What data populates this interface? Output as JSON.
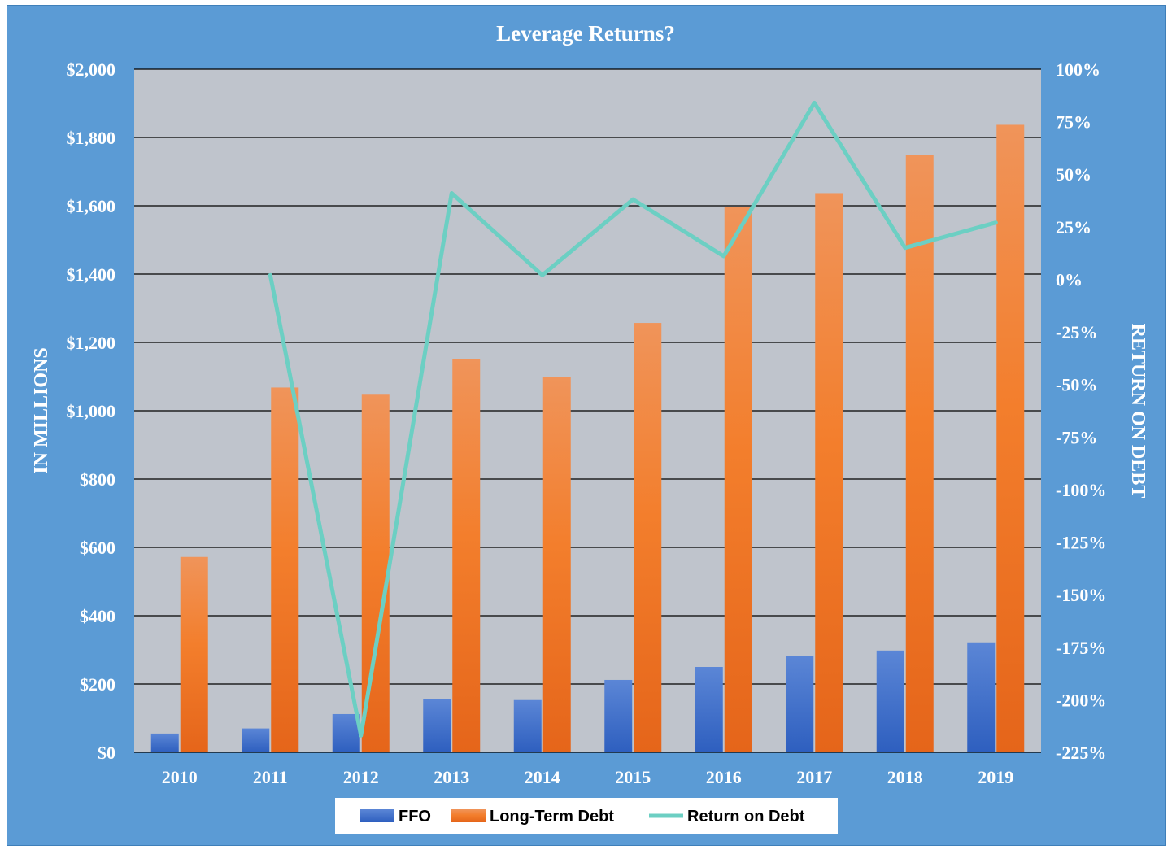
{
  "chart_data": {
    "type": "bar",
    "title": "Leverage Returns?",
    "categories": [
      "2010",
      "2011",
      "2012",
      "2013",
      "2014",
      "2015",
      "2016",
      "2017",
      "2018",
      "2019"
    ],
    "series": [
      {
        "name": "FFO",
        "type": "bar",
        "axis": "left",
        "values": [
          55,
          70,
          112,
          155,
          153,
          212,
          250,
          282,
          298,
          322
        ]
      },
      {
        "name": "Long-Term Debt",
        "type": "bar",
        "axis": "left",
        "values": [
          572,
          1068,
          1047,
          1150,
          1100,
          1257,
          1597,
          1637,
          1748,
          1837
        ]
      },
      {
        "name": "Return on Debt",
        "type": "line",
        "axis": "right",
        "values": [
          null,
          2,
          -217,
          41,
          2,
          38,
          11,
          84,
          15,
          27
        ]
      }
    ],
    "ylabel_left": "IN MILLIONS",
    "ylabel_right": "RETURN ON DEBT",
    "ylim_left": [
      0,
      2000
    ],
    "ylim_right": [
      -225,
      100
    ],
    "yticks_left": [
      "$0",
      "$200",
      "$400",
      "$600",
      "$800",
      "$1,000",
      "$1,200",
      "$1,400",
      "$1,600",
      "$1,800",
      "$2,000"
    ],
    "yticks_right": [
      "-225%",
      "-200%",
      "-175%",
      "-150%",
      "-125%",
      "-100%",
      "-75%",
      "-50%",
      "-25%",
      "0%",
      "25%",
      "50%",
      "75%",
      "100%"
    ],
    "grid": true,
    "legend_position": "bottom",
    "colors": {
      "frame_background": "#5b9bd5",
      "plot_background": "#bfc4cc",
      "ffo": "#4472c4",
      "debt": "#ed7d31",
      "return_line": "#6ccfc3",
      "text": "#ffffff",
      "legend_text": "#000000"
    }
  }
}
